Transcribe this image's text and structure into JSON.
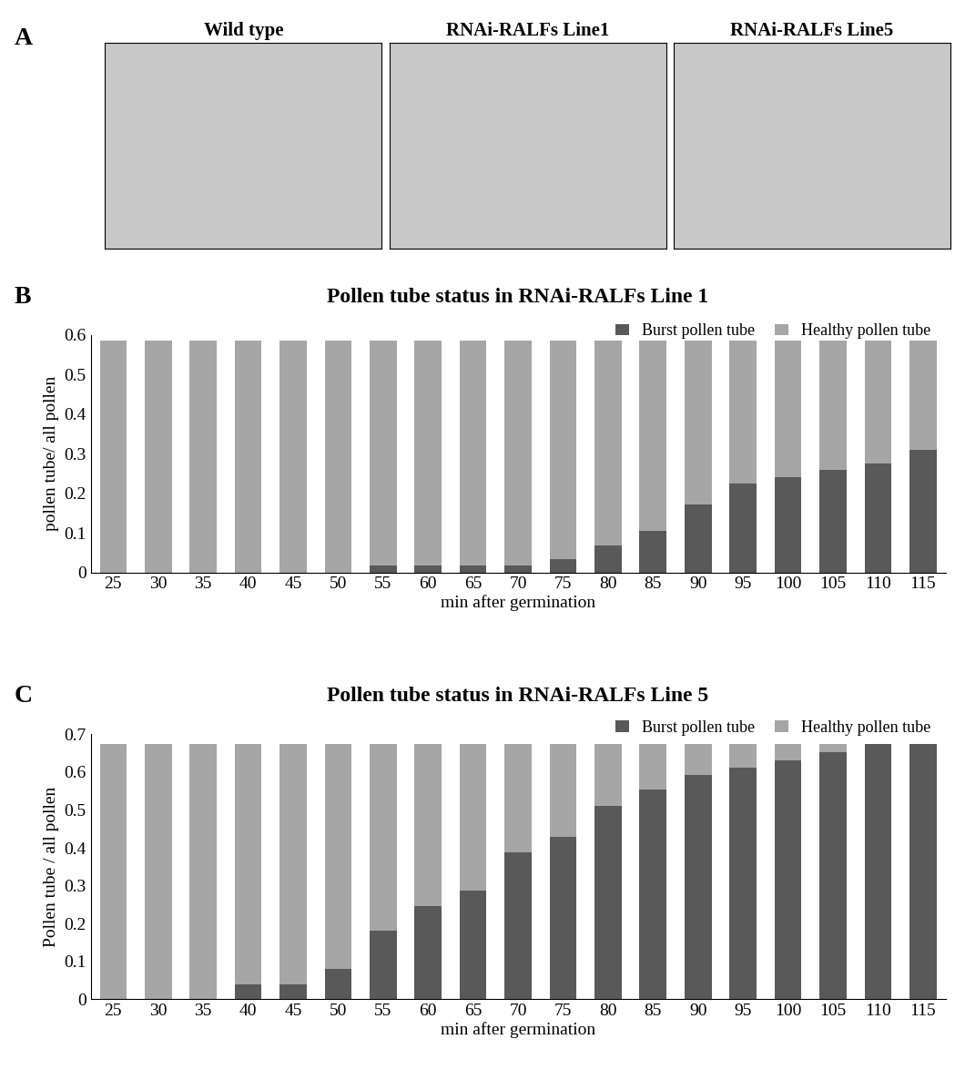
{
  "panel_a": {
    "label": "A",
    "images": [
      "Wild type",
      "RNAi-RALFs Line1",
      "RNAi-RALFs Line5"
    ]
  },
  "chart_data": [
    {
      "type": "bar",
      "panel_label": "B",
      "stacked": true,
      "title": "Pollen tube status in RNAi-RALFs Line 1",
      "x_label": "min after germination",
      "y_label": "pollen tube/ all pollen",
      "categories": [
        "25",
        "30",
        "35",
        "40",
        "45",
        "50",
        "55",
        "60",
        "65",
        "70",
        "75",
        "80",
        "85",
        "90",
        "95",
        "100",
        "105",
        "110",
        "115"
      ],
      "series": [
        {
          "name": "Burst pollen tube",
          "color": "#595959",
          "values": [
            0,
            0,
            0,
            0,
            0,
            0,
            0.018,
            0.018,
            0.018,
            0.018,
            0.034,
            0.068,
            0.104,
            0.172,
            0.224,
            0.241,
            0.258,
            0.276,
            0.31
          ]
        },
        {
          "name": "Healthy pollen tube",
          "color": "#a6a6a6",
          "values": [
            0.585,
            0.585,
            0.585,
            0.585,
            0.585,
            0.585,
            0.567,
            0.567,
            0.567,
            0.567,
            0.551,
            0.517,
            0.481,
            0.413,
            0.361,
            0.344,
            0.327,
            0.309,
            0.275
          ]
        }
      ],
      "ylim": [
        0,
        0.6
      ],
      "yticks": [
        0,
        0.1,
        0.2,
        0.3,
        0.4,
        0.5,
        0.6
      ],
      "legend": "upper right",
      "grid": false
    },
    {
      "type": "bar",
      "panel_label": "C",
      "stacked": true,
      "title": "Pollen tube status in RNAi-RALFs Line 5",
      "x_label": "min after germination",
      "y_label": "Pollen tube / all pollen",
      "categories": [
        "25",
        "30",
        "35",
        "40",
        "45",
        "50",
        "55",
        "60",
        "65",
        "70",
        "75",
        "80",
        "85",
        "90",
        "95",
        "100",
        "105",
        "110",
        "115"
      ],
      "series": [
        {
          "name": "Burst pollen tube",
          "color": "#595959",
          "values": [
            0,
            0,
            0,
            0.038,
            0.038,
            0.08,
            0.182,
            0.245,
            0.288,
            0.388,
            0.428,
            0.51,
            0.553,
            0.592,
            0.613,
            0.632,
            0.653,
            0.675,
            0.675
          ]
        },
        {
          "name": "Healthy pollen tube",
          "color": "#a6a6a6",
          "values": [
            0.675,
            0.675,
            0.675,
            0.637,
            0.637,
            0.595,
            0.493,
            0.43,
            0.387,
            0.287,
            0.247,
            0.165,
            0.122,
            0.083,
            0.062,
            0.043,
            0.022,
            0,
            0
          ]
        }
      ],
      "ylim": [
        0,
        0.7
      ],
      "yticks": [
        0,
        0.1,
        0.2,
        0.3,
        0.4,
        0.5,
        0.6,
        0.7
      ],
      "legend": "upper right",
      "grid": false
    }
  ]
}
